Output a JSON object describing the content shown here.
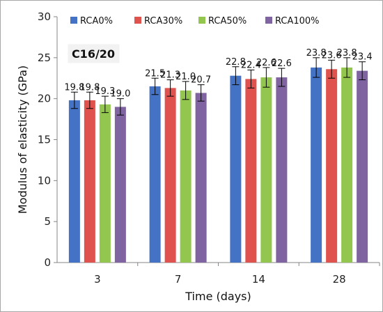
{
  "chart_data": {
    "type": "bar",
    "categories": [
      "3",
      "7",
      "14",
      "28"
    ],
    "series": [
      {
        "name": "RCA0%",
        "color": "#4472c4",
        "values": [
          19.8,
          21.5,
          22.8,
          23.8
        ],
        "error": [
          1.0,
          1.0,
          1.1,
          1.2
        ],
        "labels": [
          "19.8",
          "21.5",
          "22.8",
          "23.8"
        ]
      },
      {
        "name": "RCA30%",
        "color": "#e0524d",
        "values": [
          19.8,
          21.3,
          22.4,
          23.6
        ],
        "error": [
          1.0,
          1.0,
          1.1,
          1.1
        ],
        "labels": [
          "19.8",
          "21.3",
          "22.4",
          "23.6"
        ]
      },
      {
        "name": "RCA50%",
        "color": "#92c64e",
        "values": [
          19.3,
          21.0,
          22.6,
          23.8
        ],
        "error": [
          1.0,
          1.1,
          1.2,
          1.2
        ],
        "labels": [
          "19.3",
          "21.0",
          "22.6",
          "23.8"
        ]
      },
      {
        "name": "RCA100%",
        "color": "#8064a2",
        "values": [
          19.0,
          20.7,
          22.6,
          23.4
        ],
        "error": [
          1.0,
          1.0,
          1.1,
          1.1
        ],
        "labels": [
          "19.0",
          "20.7",
          "22.6",
          "23.4"
        ]
      }
    ],
    "xlabel": "Time (days)",
    "ylabel": "Modulus of elasticity (GPa)",
    "ylim": [
      0,
      30
    ],
    "yticks": [
      "0",
      "5",
      "10",
      "15",
      "20",
      "25",
      "30"
    ],
    "annotation": "C16/20",
    "legend_position": "top",
    "grid": false
  }
}
